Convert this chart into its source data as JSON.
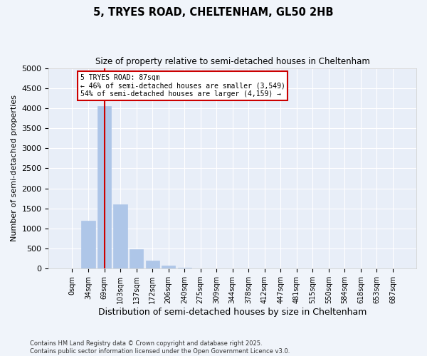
{
  "title": "5, TRYES ROAD, CHELTENHAM, GL50 2HB",
  "subtitle": "Size of property relative to semi-detached houses in Cheltenham",
  "xlabel": "Distribution of semi-detached houses by size in Cheltenham",
  "ylabel": "Number of semi-detached properties",
  "bar_labels": [
    "0sqm",
    "34sqm",
    "69sqm",
    "103sqm",
    "137sqm",
    "172sqm",
    "206sqm",
    "240sqm",
    "275sqm",
    "309sqm",
    "344sqm",
    "378sqm",
    "412sqm",
    "447sqm",
    "481sqm",
    "515sqm",
    "550sqm",
    "584sqm",
    "618sqm",
    "653sqm",
    "687sqm"
  ],
  "bar_values": [
    0,
    1200,
    4050,
    1600,
    480,
    200,
    75,
    28,
    10,
    4,
    2,
    1,
    0,
    0,
    0,
    0,
    0,
    0,
    0,
    0,
    0
  ],
  "bar_color": "#aec6e8",
  "bar_edge_color": "#aec6e8",
  "vline_x": 2,
  "vline_color": "#cc0000",
  "annotation_text": "5 TRYES ROAD: 87sqm\n← 46% of semi-detached houses are smaller (3,549)\n54% of semi-detached houses are larger (4,159) →",
  "annotation_box_color": "#ffffff",
  "annotation_box_edge": "#cc0000",
  "ylim": [
    0,
    5000
  ],
  "yticks": [
    0,
    500,
    1000,
    1500,
    2000,
    2500,
    3000,
    3500,
    4000,
    4500,
    5000
  ],
  "footnote": "Contains HM Land Registry data © Crown copyright and database right 2025.\nContains public sector information licensed under the Open Government Licence v3.0.",
  "bg_color": "#f0f4fa",
  "plot_bg_color": "#e8eef8"
}
